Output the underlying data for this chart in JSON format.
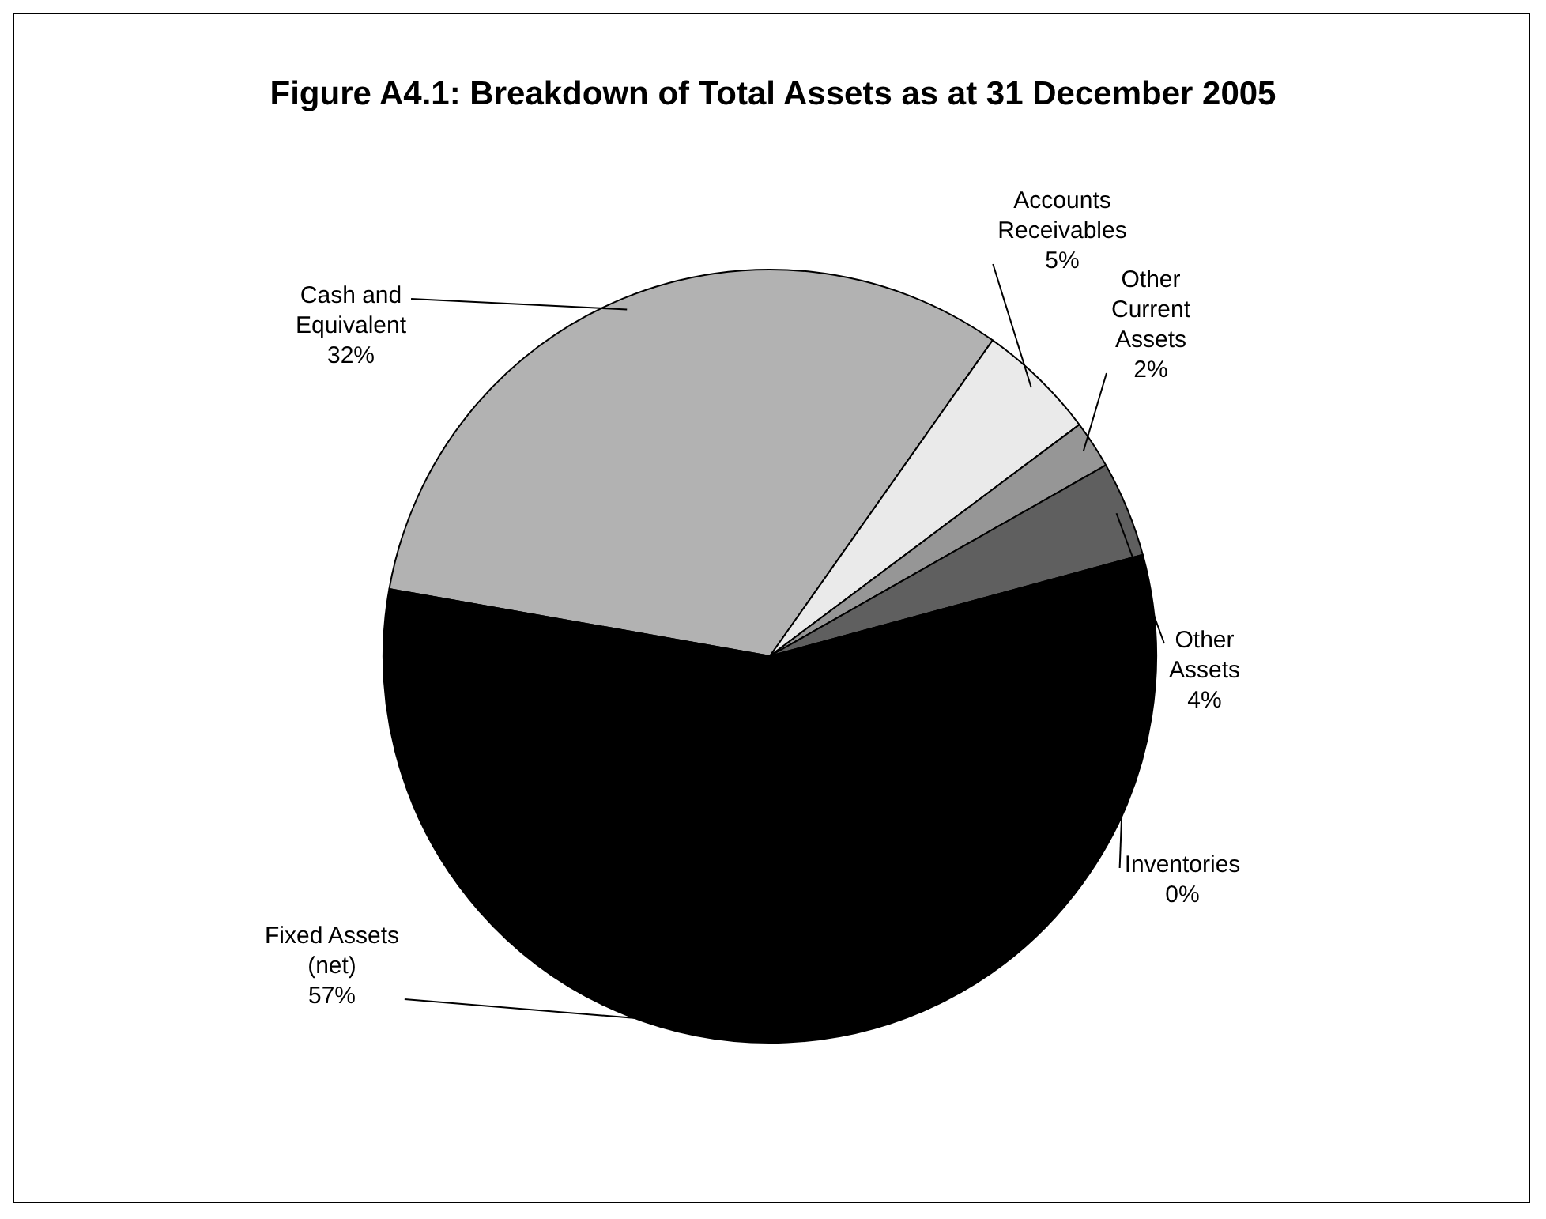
{
  "chart_data": {
    "type": "pie",
    "title": "Figure A4.1: Breakdown of Total Assets as at 31 December 2005",
    "categories": [
      "Cash and Equivalent",
      "Accounts Receivables",
      "Other Current Assets",
      "Other Assets",
      "Inventories",
      "Fixed Assets (net)"
    ],
    "values": [
      32,
      5,
      2,
      4,
      0,
      57
    ],
    "value_labels": [
      "32%",
      "5%",
      "2%",
      "4%",
      "0%",
      "57%"
    ],
    "colors": [
      "#b2b2b2",
      "#eaeaea",
      "#969696",
      "#5f5f5f",
      "#808080",
      "#000000"
    ],
    "legend": false
  }
}
